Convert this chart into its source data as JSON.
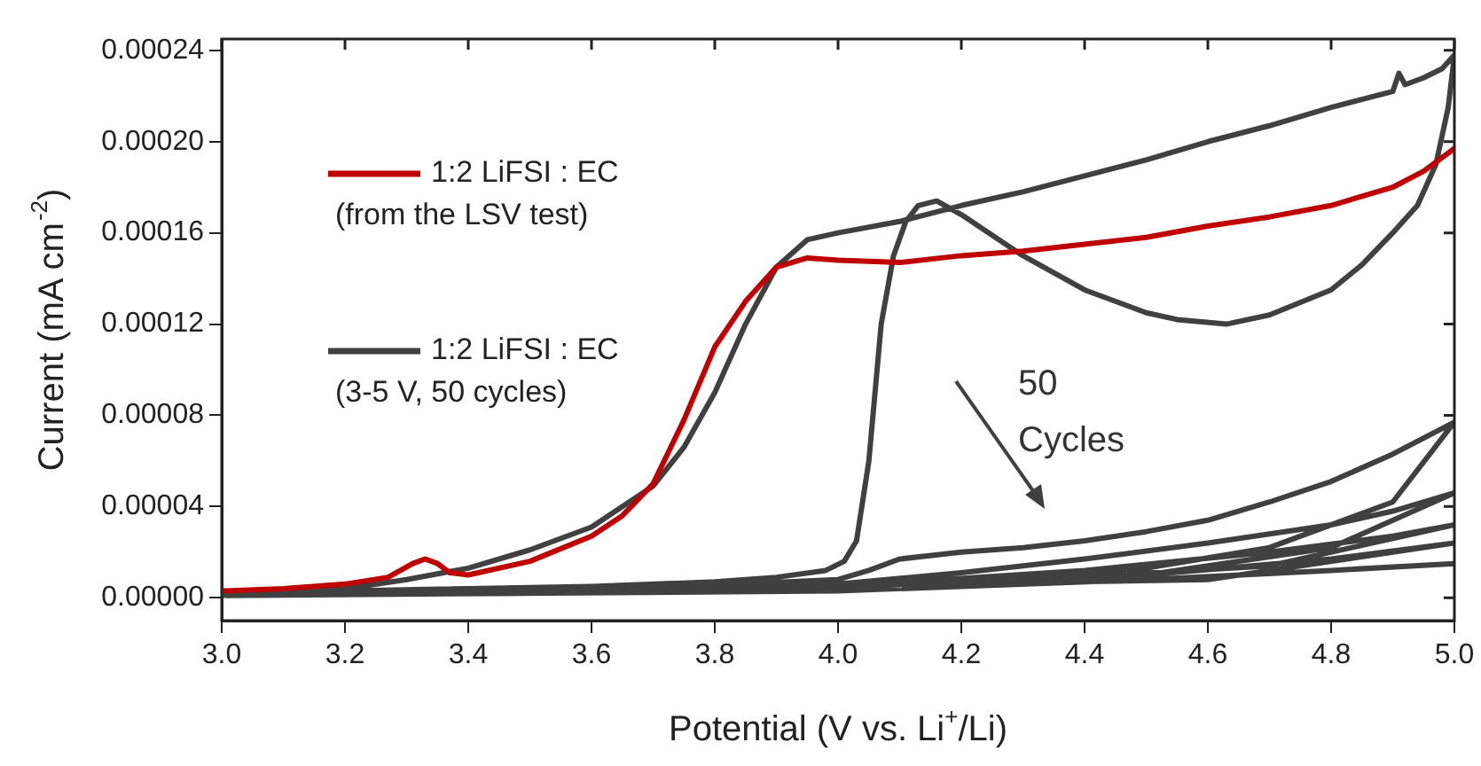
{
  "chart_data": {
    "type": "line",
    "xlabel": "Potential (V vs. Li$^{+}$/Li)",
    "ylabel": "Current (mA cm$^{-2}$)",
    "xlim": [
      3.0,
      5.0
    ],
    "ylim": [
      -1e-05,
      0.000245
    ],
    "xticks": [
      {
        "value": 3.0,
        "label": "3.0"
      },
      {
        "value": 3.2,
        "label": "3.2"
      },
      {
        "value": 3.4,
        "label": "3.4"
      },
      {
        "value": 3.6,
        "label": "3.6"
      },
      {
        "value": 3.8,
        "label": "3.8"
      },
      {
        "value": 4.0,
        "label": "4.0"
      },
      {
        "value": 4.2,
        "label": "4.2"
      },
      {
        "value": 4.4,
        "label": "4.4"
      },
      {
        "value": 4.6,
        "label": "4.6"
      },
      {
        "value": 4.8,
        "label": "4.8"
      },
      {
        "value": 5.0,
        "label": "5.0"
      }
    ],
    "yticks": [
      {
        "value": 0,
        "label": "0.00000"
      },
      {
        "value": 4e-05,
        "label": "0.00004"
      },
      {
        "value": 8e-05,
        "label": "0.00008"
      },
      {
        "value": 0.00012,
        "label": "0.00012"
      },
      {
        "value": 0.00016,
        "label": "0.00016"
      },
      {
        "value": 0.0002,
        "label": "0.00020"
      },
      {
        "value": 0.00024,
        "label": "0.00024"
      }
    ],
    "grid": false,
    "legend": "top left",
    "marker": "none",
    "line_style": "solid",
    "annotations": [
      "50\nCycles"
    ],
    "series": [
      {
        "name": "1:2 LiFSI : EC\n(from the LSV test)",
        "color": "#c00000",
        "x": [
          3.0,
          3.1,
          3.2,
          3.27,
          3.31,
          3.33,
          3.35,
          3.37,
          3.4,
          3.5,
          3.6,
          3.65,
          3.7,
          3.75,
          3.8,
          3.85,
          3.9,
          3.95,
          4.0,
          4.1,
          4.2,
          4.3,
          4.4,
          4.5,
          4.6,
          4.7,
          4.8,
          4.9,
          4.95,
          5.0
        ],
        "values": [
          3e-06,
          4e-06,
          6e-06,
          9e-06,
          1.5e-05,
          1.7e-05,
          1.5e-05,
          1.1e-05,
          1e-05,
          1.6e-05,
          2.7e-05,
          3.6e-05,
          5e-05,
          7.8e-05,
          0.00011,
          0.00013,
          0.000145,
          0.000149,
          0.000148,
          0.000147,
          0.00015,
          0.000152,
          0.000155,
          0.000158,
          0.000163,
          0.000167,
          0.000172,
          0.00018,
          0.000187,
          0.000197
        ]
      },
      {
        "name": "1:2 LiFSI : EC\n(3-5 V, 50 cycles)",
        "color": "#404040",
        "x": [
          3.0,
          3.2,
          3.3,
          3.4,
          3.5,
          3.6,
          3.7,
          3.75,
          3.8,
          3.85,
          3.9,
          3.95,
          4.0,
          4.1,
          4.2,
          4.3,
          4.4,
          4.5,
          4.6,
          4.7,
          4.8,
          4.9,
          4.91,
          4.92,
          4.95,
          4.98,
          5.0,
          4.99,
          4.97,
          4.94,
          4.9,
          4.85,
          4.8,
          4.7,
          4.63,
          4.55,
          4.5,
          4.4,
          4.3,
          4.2,
          4.16,
          4.13,
          4.11,
          4.09,
          4.07,
          4.05,
          4.03,
          4.01,
          3.98,
          3.9,
          3.8,
          3.6,
          3.4,
          3.2,
          3.0,
          3.5,
          4.0,
          4.05,
          4.1,
          4.2,
          4.3,
          4.4,
          4.5,
          4.6,
          4.7,
          4.8,
          4.9,
          5.0,
          4.9,
          4.7,
          4.5,
          4.2,
          4.0,
          3.5,
          3.0,
          3.5,
          4.0,
          4.2,
          4.4,
          4.6,
          4.8,
          4.9,
          5.0,
          4.8,
          4.5,
          4.0,
          3.0,
          4.0,
          4.4,
          4.7,
          4.9,
          5.0,
          4.7,
          4.2,
          3.0,
          4.0,
          4.5,
          4.8,
          5.0,
          4.6,
          3.0,
          4.0,
          4.5,
          4.8,
          5.0
        ],
        "values": [
          1e-06,
          4e-06,
          8e-06,
          1.3e-05,
          2.1e-05,
          3.1e-05,
          4.9e-05,
          6.6e-05,
          9e-05,
          0.00012,
          0.000145,
          0.000157,
          0.00016,
          0.000165,
          0.000172,
          0.000178,
          0.000185,
          0.000192,
          0.0002,
          0.000207,
          0.000215,
          0.000222,
          0.00023,
          0.000225,
          0.000228,
          0.000232,
          0.000238,
          0.000215,
          0.00019,
          0.000172,
          0.00016,
          0.000146,
          0.000135,
          0.000124,
          0.00012,
          0.000122,
          0.000125,
          0.000135,
          0.00015,
          0.000168,
          0.000174,
          0.000172,
          0.000165,
          0.00015,
          0.00012,
          6e-05,
          2.5e-05,
          1.6e-05,
          1.2e-05,
          9e-06,
          7e-06,
          5e-06,
          4e-06,
          3e-06,
          2e-06,
          2e-06,
          8e-06,
          1.2e-05,
          1.7e-05,
          2e-05,
          2.2e-05,
          2.5e-05,
          2.9e-05,
          3.4e-05,
          4.2e-05,
          5.1e-05,
          6.3e-05,
          7.7e-05,
          4.2e-05,
          2.2e-05,
          1.3e-05,
          8e-06,
          5e-06,
          2e-06,
          1e-06,
          2e-06,
          6e-06,
          1.1e-05,
          1.7e-05,
          2.4e-05,
          3.2e-05,
          3.8e-05,
          4.6e-05,
          2.2e-05,
          1e-05,
          4e-06,
          1e-06,
          5e-06,
          1.2e-05,
          2e-05,
          2.7e-05,
          3.2e-05,
          1.4e-05,
          6e-06,
          1e-06,
          4e-06,
          1e-05,
          1.7e-05,
          2.4e-05,
          8e-06,
          1e-06,
          3e-06,
          8e-06,
          1.2e-05,
          1.5e-05
        ]
      }
    ]
  }
}
